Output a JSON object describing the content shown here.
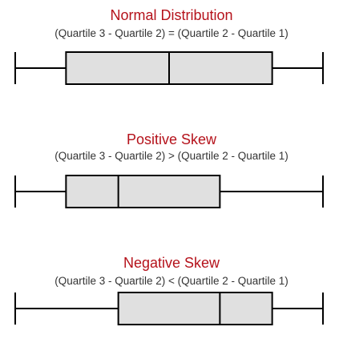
{
  "colors": {
    "title": "#b5121b",
    "box_fill": "#e0e0e0",
    "stroke": "#000000"
  },
  "sections": [
    {
      "title": "Normal Distribution",
      "subtitle": "(Quartile 3 - Quartile 2) = (Quartile 2 - Quartile 1)",
      "five_number": {
        "min": 0,
        "q1": 0.165,
        "median": 0.5,
        "q3": 0.835,
        "max": 1
      }
    },
    {
      "title": "Positive Skew",
      "subtitle": "(Quartile 3 - Quartile 2) > (Quartile 2 - Quartile 1)",
      "five_number": {
        "min": 0,
        "q1": 0.165,
        "median": 0.335,
        "q3": 0.665,
        "max": 1
      }
    },
    {
      "title": "Negative Skew",
      "subtitle": "(Quartile 3 - Quartile 2) < (Quartile 2 - Quartile 1)",
      "five_number": {
        "min": 0,
        "q1": 0.335,
        "median": 0.665,
        "q3": 0.835,
        "max": 1
      }
    }
  ]
}
